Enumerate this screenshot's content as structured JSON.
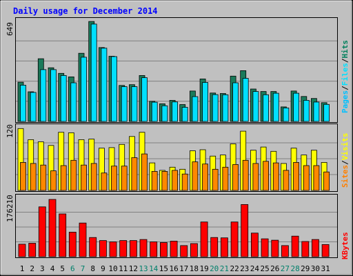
{
  "chart_data": [
    {
      "type": "bar",
      "title": "Daily usage for December 2014",
      "panel": "pages-files-hits",
      "categories": [
        "1",
        "2",
        "3",
        "4",
        "5",
        "6",
        "7",
        "8",
        "9",
        "10",
        "11",
        "12",
        "13",
        "14",
        "15",
        "16",
        "17",
        "18",
        "19",
        "20",
        "21",
        "22",
        "23",
        "24",
        "25",
        "26",
        "27",
        "28",
        "29",
        "30",
        "31"
      ],
      "weekend_days": [
        "6",
        "7",
        "13",
        "14",
        "20",
        "21",
        "27",
        "28"
      ],
      "y_max_label": "649",
      "ylim": [
        0,
        649
      ],
      "legend": [
        "Pages",
        "Files",
        "Hits"
      ],
      "series": [
        {
          "name": "Hits",
          "color": "#1a7a5a",
          "values": [
            253,
            191,
            404,
            346,
            310,
            287,
            439,
            644,
            476,
            420,
            232,
            237,
            296,
            130,
            114,
            136,
            109,
            196,
            274,
            183,
            180,
            292,
            327,
            209,
            193,
            193,
            94,
            196,
            161,
            148,
            121
          ]
        },
        {
          "name": "Files",
          "color": "#00e0ff",
          "values": [
            234,
            187,
            334,
            334,
            296,
            249,
            414,
            627,
            472,
            418,
            224,
            224,
            282,
            124,
            101,
            126,
            91,
            160,
            251,
            173,
            172,
            249,
            278,
            193,
            172,
            182,
            87,
            182,
            136,
            125,
            110
          ]
        }
      ]
    },
    {
      "type": "bar",
      "panel": "pages-visits-sites",
      "y_max_label": "120",
      "ylim": [
        0,
        120
      ],
      "legend": [
        "Sites",
        "Visits"
      ],
      "series": [
        {
          "name": "Visits",
          "color": "#ffff00",
          "values": [
            117,
            96,
            92,
            85,
            110,
            109,
            96,
            97,
            80,
            81,
            87,
            102,
            110,
            52,
            38,
            44,
            40,
            75,
            77,
            65,
            67,
            88,
            112,
            76,
            82,
            74,
            51,
            80,
            67,
            76,
            53
          ]
        },
        {
          "name": "Sites",
          "color": "#ff8800",
          "values": [
            53,
            51,
            48,
            37,
            47,
            57,
            48,
            51,
            33,
            46,
            46,
            62,
            69,
            36,
            36,
            38,
            31,
            54,
            50,
            40,
            44,
            49,
            57,
            51,
            55,
            52,
            38,
            53,
            47,
            47,
            35
          ]
        }
      ]
    },
    {
      "type": "bar",
      "panel": "kbytes",
      "y_max_label": "176210",
      "ylim": [
        0,
        176210
      ],
      "legend": [
        "KBytes"
      ],
      "series": [
        {
          "name": "KBytes",
          "color": "#ff0000",
          "values": [
            37000,
            40000,
            148000,
            170000,
            127000,
            73000,
            100000,
            57000,
            48000,
            44000,
            48000,
            48000,
            51000,
            44000,
            42000,
            46000,
            33000,
            39000,
            103000,
            57000,
            56000,
            103000,
            155000,
            70000,
            53000,
            49000,
            33000,
            61000,
            45000,
            51000,
            36000
          ]
        }
      ]
    }
  ],
  "labels": {
    "title": "Daily usage for December 2014",
    "legend_top": [
      "Pages",
      "/",
      "Files",
      "/",
      "Hits"
    ],
    "legend_mid": [
      "Sites",
      "/",
      "Visits"
    ],
    "legend_bot": [
      "KBytes"
    ]
  },
  "colors": {
    "background": "#c0c0c0",
    "title": "#0000ff",
    "day_weekday": "#000000",
    "day_weekend": "#00806b",
    "hits": "#00805c",
    "files": "#00e0ff",
    "pages": "#00c0ff",
    "visits": "#ffff00",
    "sites": "#ff8000",
    "kbytes": "#ff0000"
  }
}
